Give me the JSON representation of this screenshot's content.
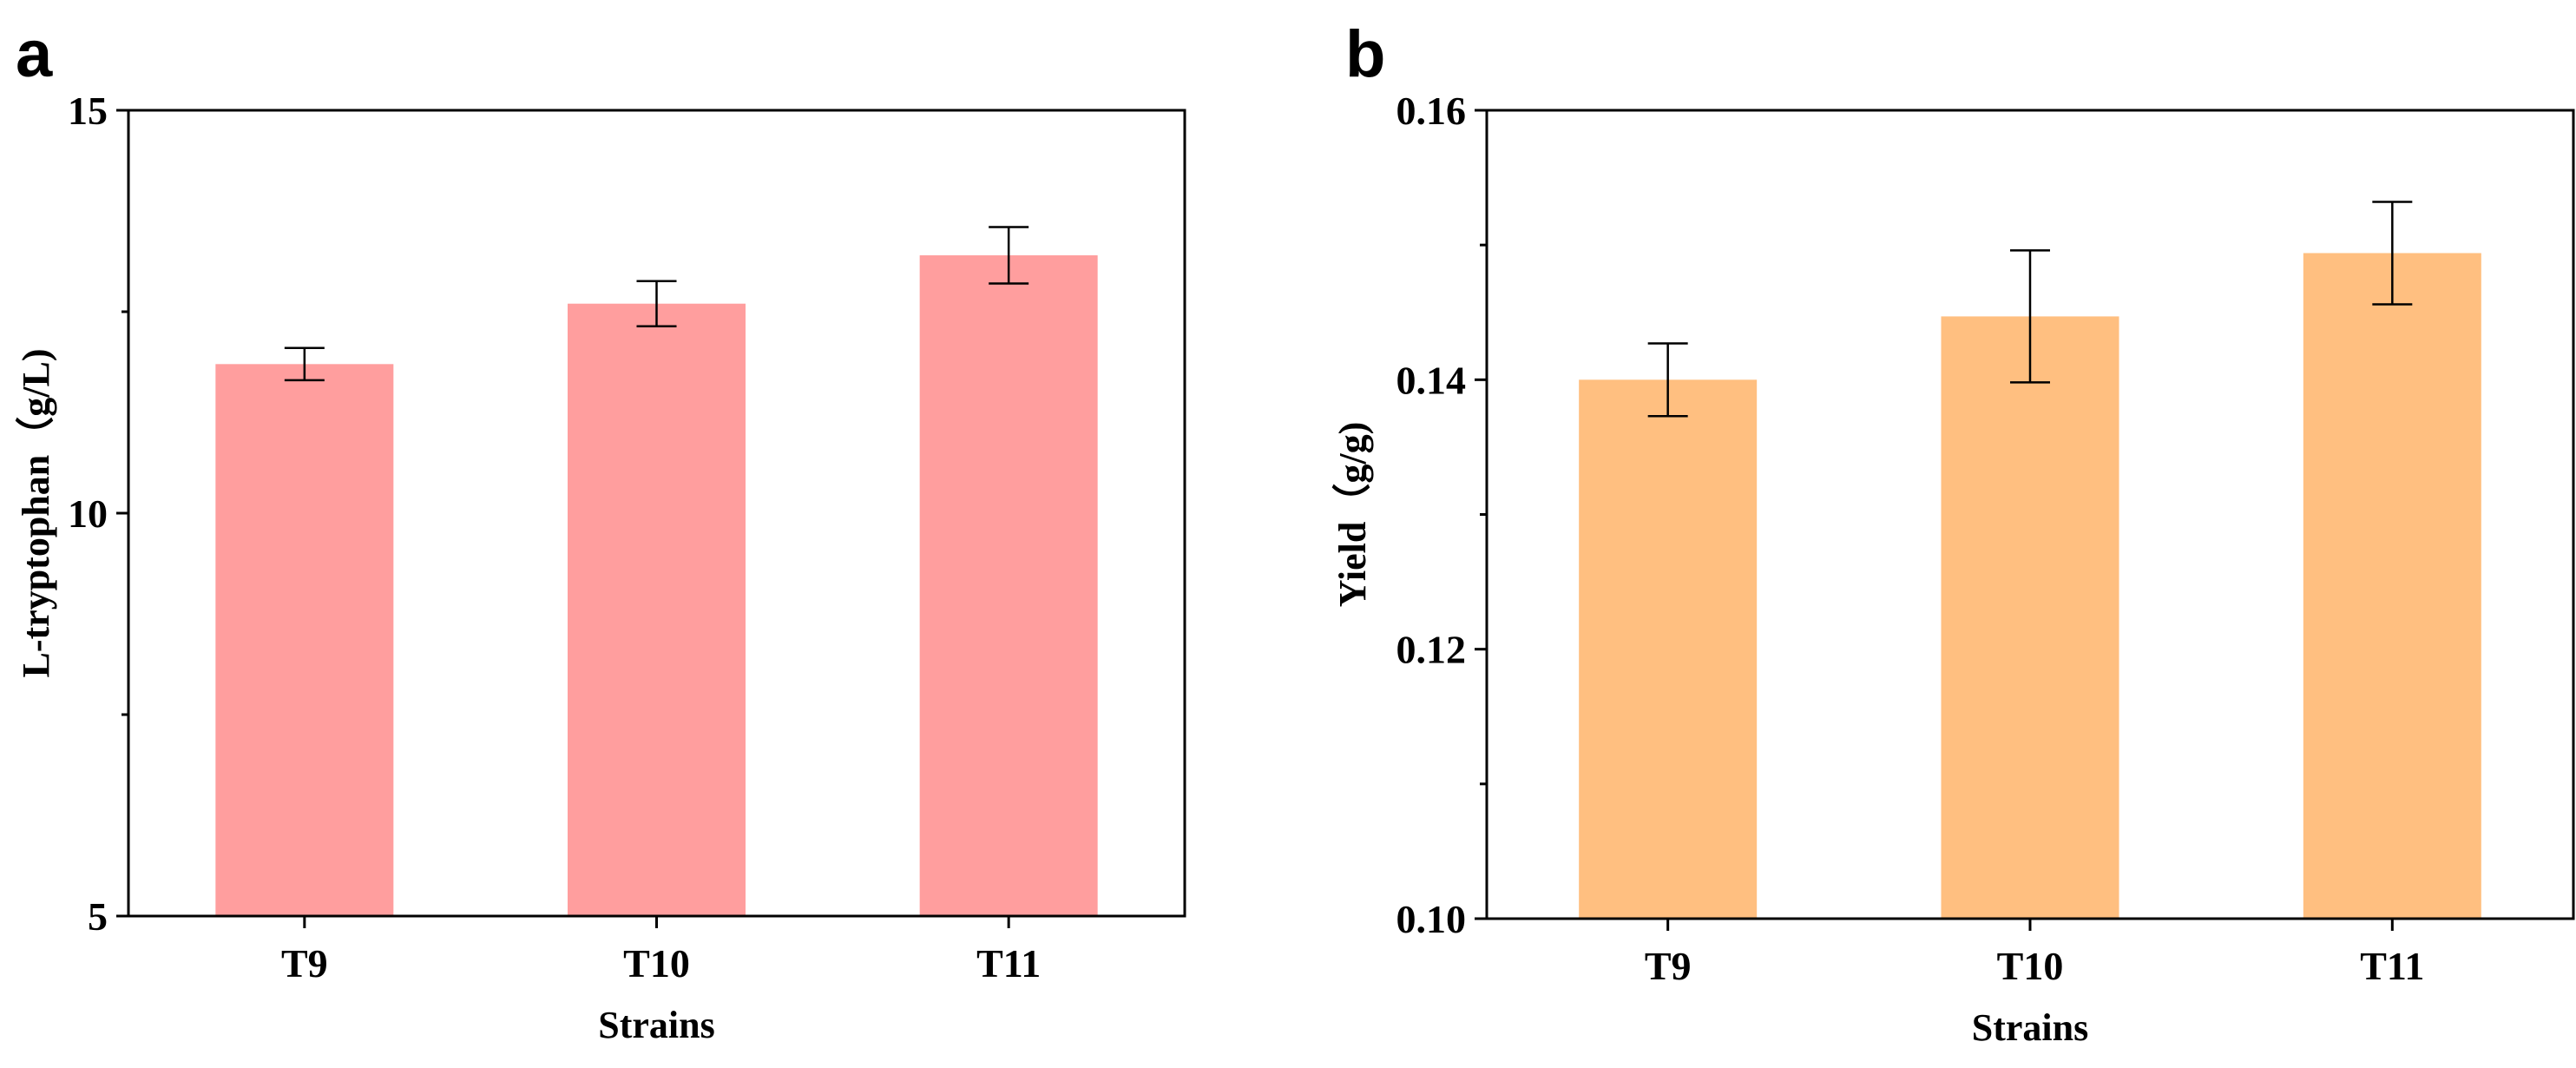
{
  "chart_data": [
    {
      "panel_label": "a",
      "type": "bar",
      "categories": [
        "T9",
        "T10",
        "T11"
      ],
      "values": [
        11.85,
        12.6,
        13.2
      ],
      "errors": [
        0.2,
        0.28,
        0.35
      ],
      "bar_color": "#FF9E9E",
      "xlabel": "Strains",
      "ylabel": "L-tryptophan（g/L)",
      "ylim": [
        5,
        15
      ],
      "yticks": [
        5,
        10,
        15
      ],
      "ytick_labels": [
        "5",
        "10",
        "15"
      ],
      "grid": false
    },
    {
      "panel_label": "b",
      "type": "bar",
      "categories": [
        "T9",
        "T10",
        "T11"
      ],
      "values": [
        0.14,
        0.1447,
        0.1494
      ],
      "errors": [
        0.0027,
        0.0049,
        0.0038
      ],
      "bar_color": "#FFBF80",
      "xlabel": "Strains",
      "ylabel": "Yield（g/g)",
      "ylim": [
        0.1,
        0.16
      ],
      "yticks": [
        0.1,
        0.12,
        0.14,
        0.16
      ],
      "ytick_labels": [
        "0.10",
        "0.12",
        "0.14",
        "0.16"
      ],
      "grid": false
    }
  ]
}
